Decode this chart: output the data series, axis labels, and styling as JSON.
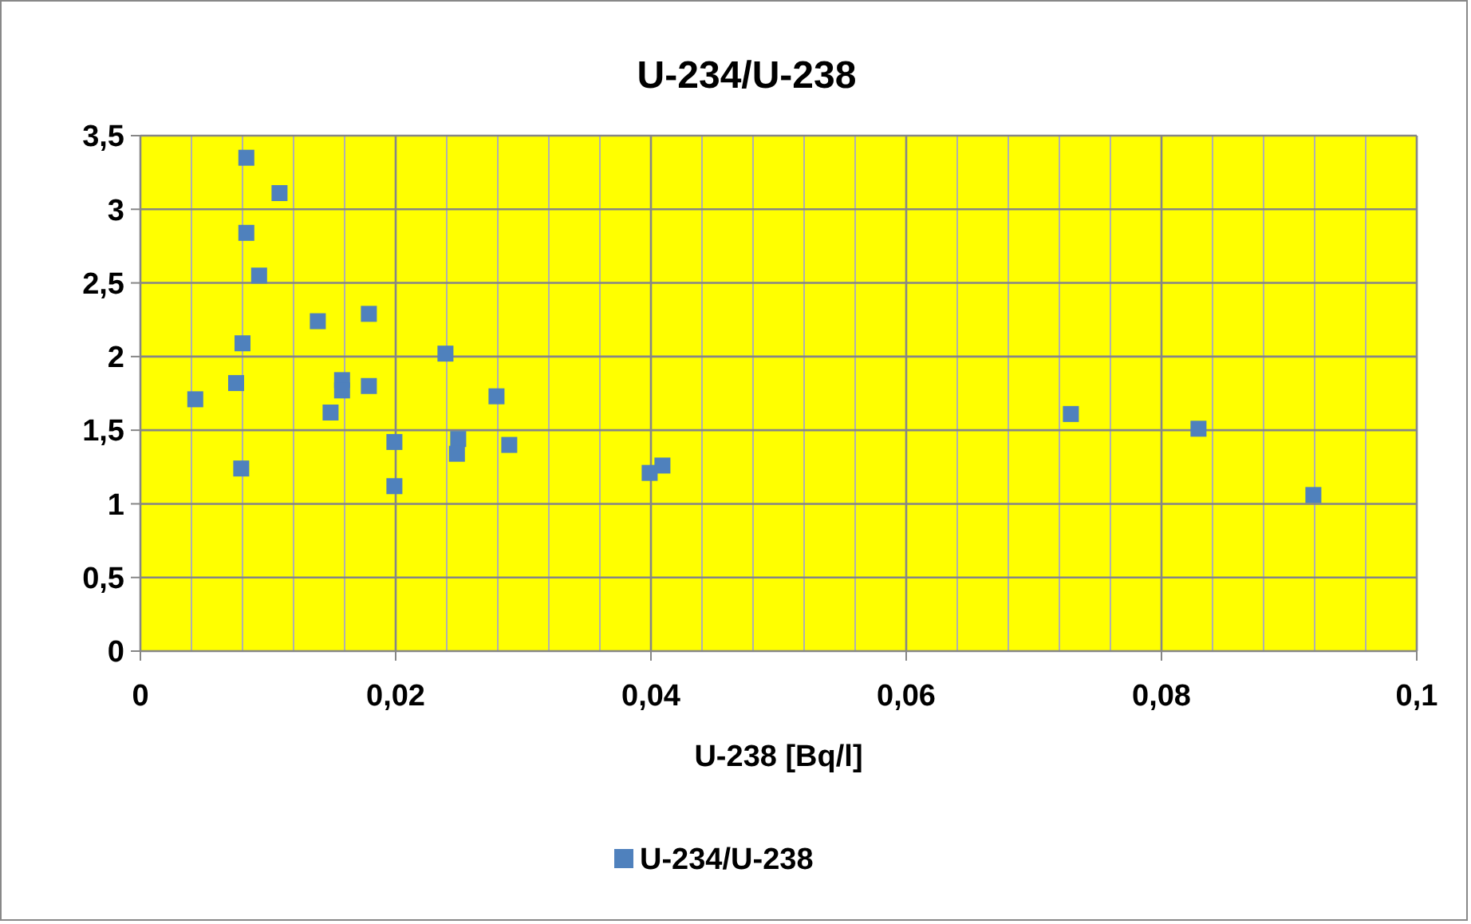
{
  "chart_data": {
    "type": "scatter",
    "title": "U-234/U-238",
    "xlabel": "U-238 [Bq/l]",
    "xlim": [
      0,
      0.1
    ],
    "xticks": [
      0,
      {
        "value": 0.02,
        "label": "0,02"
      },
      {
        "value": 0.04,
        "label": "0,04"
      },
      {
        "value": 0.06,
        "label": "0,06"
      },
      {
        "value": 0.08,
        "label": "0,08"
      },
      {
        "value": 0.1,
        "label": "0,1"
      }
    ],
    "ylim": [
      0,
      3.5
    ],
    "yticks": [
      0,
      {
        "value": 0.5,
        "label": "0,5"
      },
      1,
      {
        "value": 1.5,
        "label": "1,5"
      },
      2,
      {
        "value": 2.5,
        "label": "2,5"
      },
      3,
      {
        "value": 3.5,
        "label": "3,5"
      }
    ],
    "grid": true,
    "legend": "bottom",
    "marker": "square",
    "series": [
      {
        "name": "U-234/U-238",
        "color": "#4f81bd",
        "x": [
          0.0083,
          0.0109,
          0.0083,
          0.0093,
          0.0139,
          0.0179,
          0.008,
          0.0239,
          0.0075,
          0.0043,
          0.0158,
          0.0158,
          0.0179,
          0.0149,
          0.0279,
          0.0199,
          0.0249,
          0.0248,
          0.0289,
          0.0079,
          0.0199,
          0.0399,
          0.0409,
          0.0729,
          0.0829,
          0.0919
        ],
        "values": [
          3.35,
          3.11,
          2.84,
          2.55,
          2.24,
          2.29,
          2.09,
          2.02,
          1.82,
          1.71,
          1.84,
          1.77,
          1.8,
          1.62,
          1.73,
          1.42,
          1.44,
          1.34,
          1.4,
          1.24,
          1.12,
          1.21,
          1.26,
          1.61,
          1.51,
          1.06
        ]
      }
    ]
  }
}
